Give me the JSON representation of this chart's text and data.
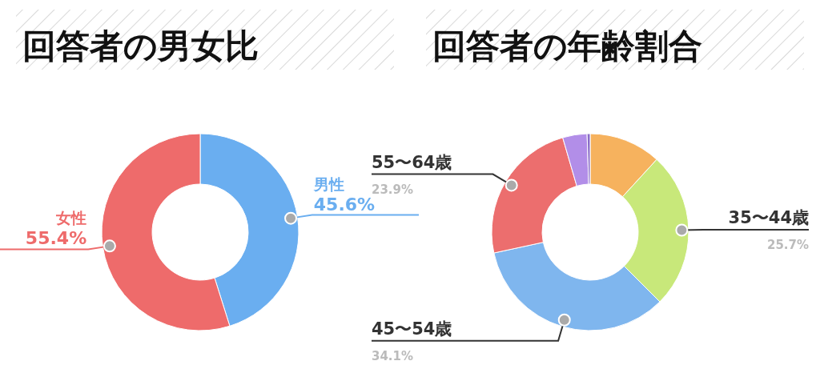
{
  "chart_data": [
    {
      "type": "donut",
      "title": "回答者の男女比",
      "categories": [
        "男性",
        "女性"
      ],
      "values": [
        45.6,
        55.4
      ],
      "colors": [
        "#6aaef0",
        "#ee6b6b"
      ],
      "value_labels": [
        "45.6%",
        "55.4%"
      ]
    },
    {
      "type": "donut",
      "title": "回答者の年齢割合",
      "categories": [
        null,
        "35〜44歳",
        "45〜54歳",
        "55〜64歳",
        null,
        null
      ],
      "values": [
        11.8,
        25.7,
        34.1,
        23.9,
        4.0,
        0.5
      ],
      "colors": [
        "#f6b25e",
        "#c8e87a",
        "#7fb6ee",
        "#ec6e6e",
        "#b28ee8",
        "#8a6cc8"
      ],
      "value_labels": [
        null,
        "25.7%",
        "34.1%",
        "23.9%",
        null,
        null
      ]
    }
  ]
}
